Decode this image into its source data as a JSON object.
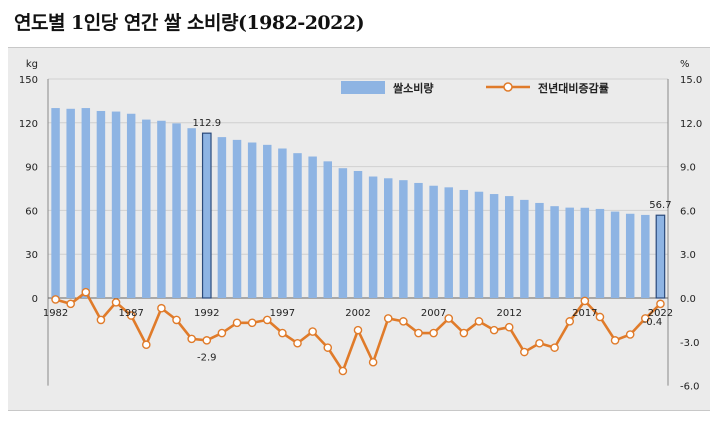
{
  "title": "연도별 1인당 연간 쌀 소비량(1982-2022)",
  "chart_data": {
    "type": "bar",
    "title": "연도별 1인당 연간 쌀 소비량(1982-2022)",
    "y_left_unit": "kg",
    "y_right_unit": "%",
    "y_left_ticks": [
      "150",
      "120",
      "90",
      "60",
      "30",
      "0"
    ],
    "y_right_ticks": [
      "15.0",
      "12.0",
      "9.0",
      "6.0",
      "3.0",
      "0.0",
      "-3.0",
      "-6.0"
    ],
    "y_left_range": [
      0,
      150
    ],
    "y_right_range": [
      -6,
      15
    ],
    "x_tick_labels": [
      "1982",
      "1987",
      "1992",
      "1997",
      "2002",
      "2007",
      "2012",
      "2017",
      "2022"
    ],
    "years": [
      1982,
      1983,
      1984,
      1985,
      1986,
      1987,
      1988,
      1989,
      1990,
      1991,
      1992,
      1993,
      1994,
      1995,
      1996,
      1997,
      1998,
      1999,
      2000,
      2001,
      2002,
      2003,
      2004,
      2005,
      2006,
      2007,
      2008,
      2009,
      2010,
      2011,
      2012,
      2013,
      2014,
      2015,
      2016,
      2017,
      2018,
      2019,
      2020,
      2021,
      2022
    ],
    "series": [
      {
        "name": "쌀소비량",
        "type": "bar",
        "axis": "left",
        "color": "#8eb4e3",
        "values": [
          130.1,
          129.6,
          130.1,
          128.1,
          127.7,
          126.2,
          122.2,
          121.4,
          119.6,
          116.3,
          112.9,
          110.2,
          108.3,
          106.5,
          104.9,
          102.4,
          99.2,
          96.9,
          93.6,
          88.9,
          87.0,
          83.2,
          82.0,
          80.7,
          78.8,
          76.9,
          75.8,
          74.0,
          72.8,
          71.2,
          69.8,
          67.2,
          65.1,
          62.9,
          61.9,
          61.8,
          61.0,
          59.2,
          57.7,
          56.9,
          56.7
        ],
        "highlight_indices": [
          10,
          40
        ]
      },
      {
        "name": "전년대비증감률",
        "type": "line",
        "axis": "right",
        "color": "#e07b2a",
        "values": [
          -0.1,
          -0.4,
          0.4,
          -1.5,
          -0.3,
          -1.2,
          -3.2,
          -0.7,
          -1.5,
          -2.8,
          -2.9,
          -2.4,
          -1.7,
          -1.7,
          -1.5,
          -2.4,
          -3.1,
          -2.3,
          -3.4,
          -5.0,
          -2.2,
          -4.4,
          -1.4,
          -1.6,
          -2.4,
          -2.4,
          -1.4,
          -2.4,
          -1.6,
          -2.2,
          -2.0,
          -3.7,
          -3.1,
          -3.4,
          -1.6,
          -0.2,
          -1.3,
          -2.9,
          -2.5,
          -1.4,
          -0.4
        ]
      }
    ],
    "annotations": [
      {
        "year": 1992,
        "series": "쌀소비량",
        "label": "112.9"
      },
      {
        "year": 1992,
        "series": "전년대비증감률",
        "label": "-2.9"
      },
      {
        "year": 2022,
        "series": "쌀소비량",
        "label": "56.7"
      },
      {
        "year": 2022,
        "series": "전년대비증감률",
        "label": "-0.4"
      }
    ],
    "legend_position": "top-right"
  }
}
